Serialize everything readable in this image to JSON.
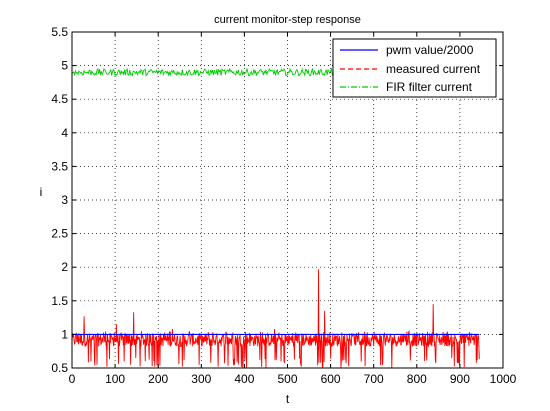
{
  "chart_data": {
    "type": "line",
    "title": "current monitor-step response",
    "xlabel": "t",
    "ylabel": "i",
    "xlim": [
      0,
      1000
    ],
    "ylim": [
      0.5,
      5.5
    ],
    "xticks": [
      0,
      100,
      200,
      300,
      400,
      500,
      600,
      700,
      800,
      900,
      1000
    ],
    "xtick_labels": [
      "0",
      "100",
      "200",
      "300",
      "400",
      "500",
      "600",
      "700",
      "800",
      "900",
      "1000"
    ],
    "yticks": [
      0.5,
      1,
      1.5,
      2,
      2.5,
      3,
      3.5,
      4,
      4.5,
      5,
      5.5
    ],
    "ytick_labels": [
      "0.5",
      "1",
      "1.5",
      "2",
      "2.5",
      "3",
      "3.5",
      "4",
      "4.5",
      "5",
      "5.5"
    ],
    "grid": true,
    "grid_style": "dotted",
    "legend_position": "top-right",
    "series": [
      {
        "name": "pwm value/2000",
        "color": "#0000ff",
        "style": "solid",
        "x": [
          0,
          945
        ],
        "y": [
          1.0,
          1.0
        ]
      },
      {
        "name": "measured current",
        "color": "#ff0000",
        "style": "dashed",
        "x_range": [
          0,
          945
        ],
        "baseline": 0.93,
        "noise_band": [
          0.82,
          1.02
        ],
        "dropouts_to": 0.5,
        "spikes": [
          {
            "x": 28,
            "y": 1.27
          },
          {
            "x": 103,
            "y": 1.15
          },
          {
            "x": 143,
            "y": 1.33
          },
          {
            "x": 233,
            "y": 1.08
          },
          {
            "x": 470,
            "y": 1.08
          },
          {
            "x": 572,
            "y": 1.97
          },
          {
            "x": 586,
            "y": 1.35
          },
          {
            "x": 838,
            "y": 1.45
          }
        ]
      },
      {
        "name": "FIR filter current",
        "color": "#00cc00",
        "style": "dash-dot",
        "x_range": [
          0,
          615
        ],
        "y_mean": 4.9,
        "y_noise": 0.05
      }
    ]
  }
}
